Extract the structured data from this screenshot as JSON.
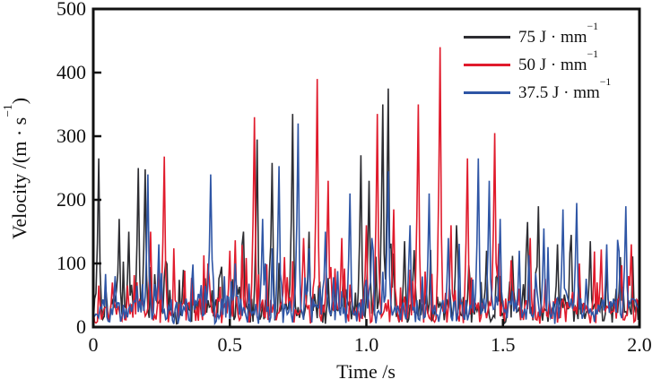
{
  "figure": {
    "x_axis": {
      "label": "Time /s",
      "tick_labels": [
        "0",
        "0.5",
        "1.0",
        "1.5",
        "2.0"
      ],
      "tick_values": [
        0,
        0.5,
        1.0,
        1.5,
        2.0
      ]
    },
    "y_axis": {
      "label_pre": "Velocity /(m · s",
      "label_sup": "−1",
      "label_post": ")",
      "tick_labels": [
        "0",
        "100",
        "200",
        "300",
        "400",
        "500"
      ],
      "tick_values": [
        0,
        100,
        200,
        300,
        400,
        500
      ]
    },
    "legend": [
      {
        "base": "75 J · mm",
        "sup": "−1",
        "color": "#2d2d32"
      },
      {
        "base": "50 J · mm",
        "sup": "−1",
        "color": "#e01b2c"
      },
      {
        "base": "37.5 J · mm",
        "sup": "−1",
        "color": "#2e55a5"
      }
    ],
    "axis_color": "#111111",
    "background": "#ffffff"
  },
  "chart_data": {
    "type": "line",
    "title": "",
    "xlabel": "Time /s",
    "ylabel": "Velocity /(m · s⁻¹)",
    "xlim": [
      0,
      2.0
    ],
    "ylim": [
      0,
      500
    ],
    "grid": false,
    "legend_position": "top-right-inside",
    "description": "Three noisy spike-train velocity signals vs time; baseline jitter ~5-60 m/s with narrow spikes; major peaks listed as [time_s, velocity_mps].",
    "series": [
      {
        "name": "75 J·mm⁻¹",
        "color": "#2d2d32",
        "seed": 7,
        "baseline_range": [
          5,
          60
        ],
        "major_peaks": [
          [
            0.02,
            265
          ],
          [
            0.095,
            170
          ],
          [
            0.13,
            150
          ],
          [
            0.165,
            250
          ],
          [
            0.19,
            248
          ],
          [
            0.33,
            90
          ],
          [
            0.47,
            95
          ],
          [
            0.55,
            150
          ],
          [
            0.6,
            295
          ],
          [
            0.655,
            258
          ],
          [
            0.73,
            335
          ],
          [
            0.79,
            150
          ],
          [
            0.98,
            270
          ],
          [
            1.01,
            230
          ],
          [
            1.06,
            350
          ],
          [
            1.08,
            375
          ],
          [
            1.14,
            135
          ],
          [
            1.33,
            160
          ],
          [
            1.44,
            120
          ],
          [
            1.59,
            165
          ],
          [
            1.63,
            190
          ],
          [
            1.7,
            130
          ],
          [
            1.75,
            145
          ],
          [
            1.82,
            135
          ],
          [
            1.93,
            110
          ]
        ]
      },
      {
        "name": "50 J·mm⁻¹",
        "color": "#e01b2c",
        "seed": 13,
        "baseline_range": [
          5,
          60
        ],
        "major_peaks": [
          [
            0.07,
            70
          ],
          [
            0.21,
            150
          ],
          [
            0.26,
            268
          ],
          [
            0.42,
            100
          ],
          [
            0.5,
            120
          ],
          [
            0.59,
            330
          ],
          [
            0.7,
            110
          ],
          [
            0.77,
            140
          ],
          [
            0.82,
            390
          ],
          [
            0.86,
            230
          ],
          [
            0.91,
            140
          ],
          [
            1.0,
            160
          ],
          [
            1.04,
            335
          ],
          [
            1.1,
            185
          ],
          [
            1.19,
            350
          ],
          [
            1.27,
            440
          ],
          [
            1.31,
            160
          ],
          [
            1.37,
            265
          ],
          [
            1.47,
            305
          ],
          [
            1.53,
            105
          ],
          [
            1.6,
            140
          ],
          [
            1.78,
            100
          ],
          [
            1.86,
            122
          ],
          [
            1.97,
            130
          ]
        ]
      },
      {
        "name": "37.5 J·mm⁻¹",
        "color": "#2e55a5",
        "seed": 29,
        "baseline_range": [
          5,
          60
        ],
        "major_peaks": [
          [
            0.08,
            80
          ],
          [
            0.2,
            240
          ],
          [
            0.24,
            130
          ],
          [
            0.43,
            240
          ],
          [
            0.52,
            100
          ],
          [
            0.62,
            170
          ],
          [
            0.68,
            253
          ],
          [
            0.75,
            320
          ],
          [
            0.85,
            150
          ],
          [
            0.94,
            210
          ],
          [
            1.02,
            140
          ],
          [
            1.08,
            245
          ],
          [
            1.16,
            160
          ],
          [
            1.23,
            210
          ],
          [
            1.3,
            140
          ],
          [
            1.41,
            265
          ],
          [
            1.45,
            230
          ],
          [
            1.49,
            170
          ],
          [
            1.56,
            120
          ],
          [
            1.65,
            155
          ],
          [
            1.72,
            185
          ],
          [
            1.77,
            195
          ],
          [
            1.88,
            130
          ],
          [
            1.95,
            190
          ]
        ]
      }
    ]
  }
}
